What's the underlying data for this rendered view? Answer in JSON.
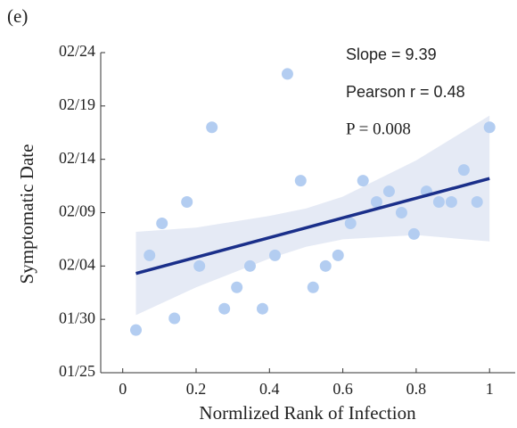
{
  "chart_data": {
    "type": "scatter",
    "panel_label": "(e)",
    "xlabel": "Normlized Rank of Infection",
    "ylabel": "Symptomatic Date",
    "annotations": [
      "Slope = 9.39",
      "Pearson r  =  0.48",
      "P = 0.008"
    ],
    "xlim": [
      -0.06,
      1.07
    ],
    "ylim": [
      25,
      55
    ],
    "xticks": [
      0,
      0.2,
      0.4,
      0.6,
      0.8,
      1
    ],
    "yticks": [
      {
        "value": 25,
        "label": "01/25"
      },
      {
        "value": 30,
        "label": "01/30"
      },
      {
        "value": 35,
        "label": "02/04"
      },
      {
        "value": 40,
        "label": "02/09"
      },
      {
        "value": 45,
        "label": "02/14"
      },
      {
        "value": 50,
        "label": "02/19"
      },
      {
        "value": 55,
        "label": "02/24"
      }
    ],
    "points": {
      "color": "#b3cdf1",
      "x": [
        0.036,
        0.073,
        0.107,
        0.141,
        0.175,
        0.209,
        0.243,
        0.277,
        0.311,
        0.347,
        0.381,
        0.415,
        0.449,
        0.485,
        0.519,
        0.553,
        0.587,
        0.621,
        0.655,
        0.692,
        0.726,
        0.76,
        0.794,
        0.828,
        0.862,
        0.896,
        0.93,
        0.966,
        1
      ],
      "values": [
        29,
        36,
        39,
        30.1,
        41,
        35,
        48,
        31,
        33,
        35,
        31,
        36,
        53,
        43,
        33,
        35,
        36,
        39,
        43,
        41,
        42,
        40,
        38,
        42,
        41,
        41,
        44,
        41,
        48
      ]
    },
    "fit": {
      "color": "#1a2f8a",
      "x": [
        0.036,
        1
      ],
      "values": [
        34.3,
        43.2
      ]
    },
    "band": {
      "color": "#e5eaf5",
      "x": [
        0.036,
        0.2,
        0.4,
        0.5,
        0.6,
        0.8,
        1
      ],
      "upper": [
        38.2,
        38.6,
        39.7,
        40.4,
        41.5,
        44.9,
        49.1
      ],
      "lower": [
        30.4,
        33.0,
        35.7,
        36.8,
        37.5,
        37.9,
        37.3
      ]
    }
  }
}
